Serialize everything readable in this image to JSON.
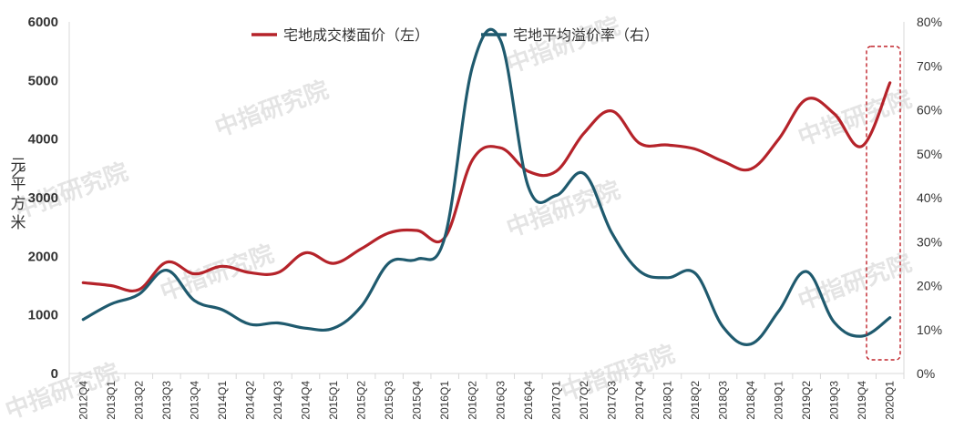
{
  "chart_data": {
    "type": "line",
    "title": "",
    "categories": [
      "2012Q4",
      "2013Q1",
      "2013Q2",
      "2013Q3",
      "2013Q4",
      "2014Q1",
      "2014Q2",
      "2014Q3",
      "2014Q4",
      "2015Q1",
      "2015Q2",
      "2015Q3",
      "2015Q4",
      "2016Q1",
      "2016Q2",
      "2016Q3",
      "2016Q4",
      "2017Q1",
      "2017Q2",
      "2017Q3",
      "2017Q4",
      "2018Q1",
      "2018Q2",
      "2018Q3",
      "2018Q4",
      "2019Q1",
      "2019Q2",
      "2019Q3",
      "2019Q4",
      "2020Q1"
    ],
    "series": [
      {
        "name": "宅地成交楼面价（左）",
        "axis": "left",
        "color": "#b5232a",
        "values": [
          1550,
          1500,
          1430,
          1900,
          1700,
          1830,
          1720,
          1720,
          2060,
          1880,
          2130,
          2400,
          2440,
          2320,
          3650,
          3850,
          3450,
          3450,
          4100,
          4480,
          3930,
          3900,
          3830,
          3620,
          3490,
          4000,
          4680,
          4430,
          3880,
          4960
        ]
      },
      {
        "name": "宅地平均溢价率（右）",
        "axis": "right",
        "color": "#1f5a6e",
        "values": [
          12.3,
          15.8,
          18.0,
          23.5,
          16.6,
          14.5,
          11.2,
          11.5,
          10.3,
          10.3,
          15.3,
          25.2,
          26.0,
          31.0,
          70.0,
          75.8,
          42.5,
          40.5,
          45.5,
          32.0,
          23.3,
          21.8,
          22.8,
          10.6,
          6.7,
          14.2,
          23.2,
          11.6,
          8.5,
          12.7
        ]
      }
    ],
    "y_left": {
      "ylim": [
        0,
        6000
      ],
      "ticks": [
        "0",
        "1000",
        "2000",
        "3000",
        "4000",
        "5000",
        "6000"
      ],
      "label": "元/平方米"
    },
    "y_right": {
      "ylim": [
        0,
        80
      ],
      "ticks": [
        "0%",
        "10%",
        "20%",
        "30%",
        "40%",
        "50%",
        "60%",
        "70%",
        "80%"
      ]
    },
    "legend_position": "top-center",
    "highlight_categories": [
      "2019Q4",
      "2020Q1"
    ],
    "grid": false
  },
  "ylabel_chars": [
    "元",
    "平",
    "方",
    "米"
  ],
  "watermark": "中指研究院"
}
